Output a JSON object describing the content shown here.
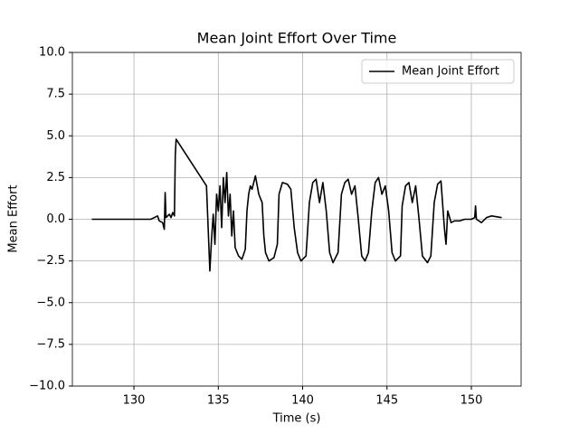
{
  "chart_data": {
    "type": "line",
    "title": "Mean Joint Effort Over Time",
    "x_label": "Time (s)",
    "y_label": "Mean Effort",
    "x": [
      127.5,
      131.0,
      131.2,
      131.4,
      131.5,
      131.7,
      131.8,
      131.85,
      131.9,
      132.1,
      132.2,
      132.3,
      132.4,
      132.45,
      132.5,
      134.3,
      134.5,
      134.6,
      134.7,
      134.8,
      134.9,
      135.0,
      135.1,
      135.2,
      135.3,
      135.4,
      135.5,
      135.6,
      135.7,
      135.8,
      135.9,
      136.0,
      136.2,
      136.4,
      136.6,
      136.7,
      136.8,
      136.9,
      137.0,
      137.2,
      137.4,
      137.6,
      137.7,
      137.8,
      138.0,
      138.3,
      138.5,
      138.6,
      138.8,
      139.1,
      139.3,
      139.5,
      139.7,
      139.9,
      140.2,
      140.4,
      140.6,
      140.8,
      141.0,
      141.2,
      141.4,
      141.6,
      141.8,
      142.1,
      142.3,
      142.5,
      142.7,
      142.9,
      143.1,
      143.3,
      143.5,
      143.7,
      143.9,
      144.1,
      144.3,
      144.5,
      144.7,
      144.9,
      145.1,
      145.3,
      145.5,
      145.8,
      145.9,
      146.1,
      146.3,
      146.5,
      146.7,
      146.9,
      147.1,
      147.4,
      147.6,
      147.8,
      148.0,
      148.2,
      148.4,
      148.5,
      148.6,
      148.8,
      149.0,
      149.3,
      149.6,
      150.0,
      150.2,
      150.25,
      150.3,
      150.6,
      150.9,
      151.2,
      151.8
    ],
    "series": [
      {
        "name": "Mean Joint Effort",
        "color": "#000000",
        "values": [
          0,
          0,
          0.1,
          0.2,
          -0.1,
          -0.2,
          -0.6,
          1.6,
          0.1,
          0.3,
          0.1,
          0.4,
          0.2,
          3.8,
          4.8,
          2.0,
          -3.1,
          -1.2,
          0.3,
          -1.5,
          1.5,
          0.5,
          2.0,
          -0.5,
          2.5,
          1.0,
          2.8,
          0.2,
          1.5,
          -1.0,
          0.5,
          -1.7,
          -2.2,
          -2.4,
          -1.8,
          0.5,
          1.5,
          2.0,
          1.8,
          2.6,
          1.5,
          1.0,
          -1.0,
          -2.0,
          -2.5,
          -2.3,
          -1.5,
          1.5,
          2.2,
          2.1,
          1.8,
          -0.5,
          -2.0,
          -2.5,
          -2.2,
          1.0,
          2.2,
          2.4,
          1.0,
          2.2,
          0.5,
          -2.0,
          -2.6,
          -2.0,
          1.5,
          2.2,
          2.4,
          1.5,
          2.0,
          0,
          -2.2,
          -2.5,
          -2.0,
          0.5,
          2.2,
          2.5,
          1.5,
          2.0,
          0.5,
          -2.0,
          -2.5,
          -2.2,
          0.8,
          2.0,
          2.2,
          1.0,
          2.0,
          0,
          -2.2,
          -2.6,
          -2.2,
          1.0,
          2.1,
          2.3,
          -0.5,
          -1.5,
          0.5,
          -0.2,
          -0.1,
          -0.1,
          0,
          0,
          0.1,
          0.8,
          0,
          -0.2,
          0.1,
          0.2,
          0.1
        ]
      }
    ],
    "xlim": [
      126.35,
      152.95
    ],
    "ylim": [
      -10,
      10
    ],
    "xticks": [
      130,
      135,
      140,
      145,
      150
    ],
    "yticks": [
      {
        "value": -10,
        "label": "−10.0"
      },
      {
        "value": -7.5,
        "label": "−7.5"
      },
      {
        "value": -5,
        "label": "−5.0"
      },
      {
        "value": -2.5,
        "label": "−2.5"
      },
      {
        "value": 0,
        "label": "0.0"
      },
      {
        "value": 2.5,
        "label": "2.5"
      },
      {
        "value": 5,
        "label": "5.0"
      },
      {
        "value": 7.5,
        "label": "7.5"
      },
      {
        "value": 10,
        "label": "10.0"
      }
    ],
    "grid": true,
    "legend": "upper right"
  }
}
